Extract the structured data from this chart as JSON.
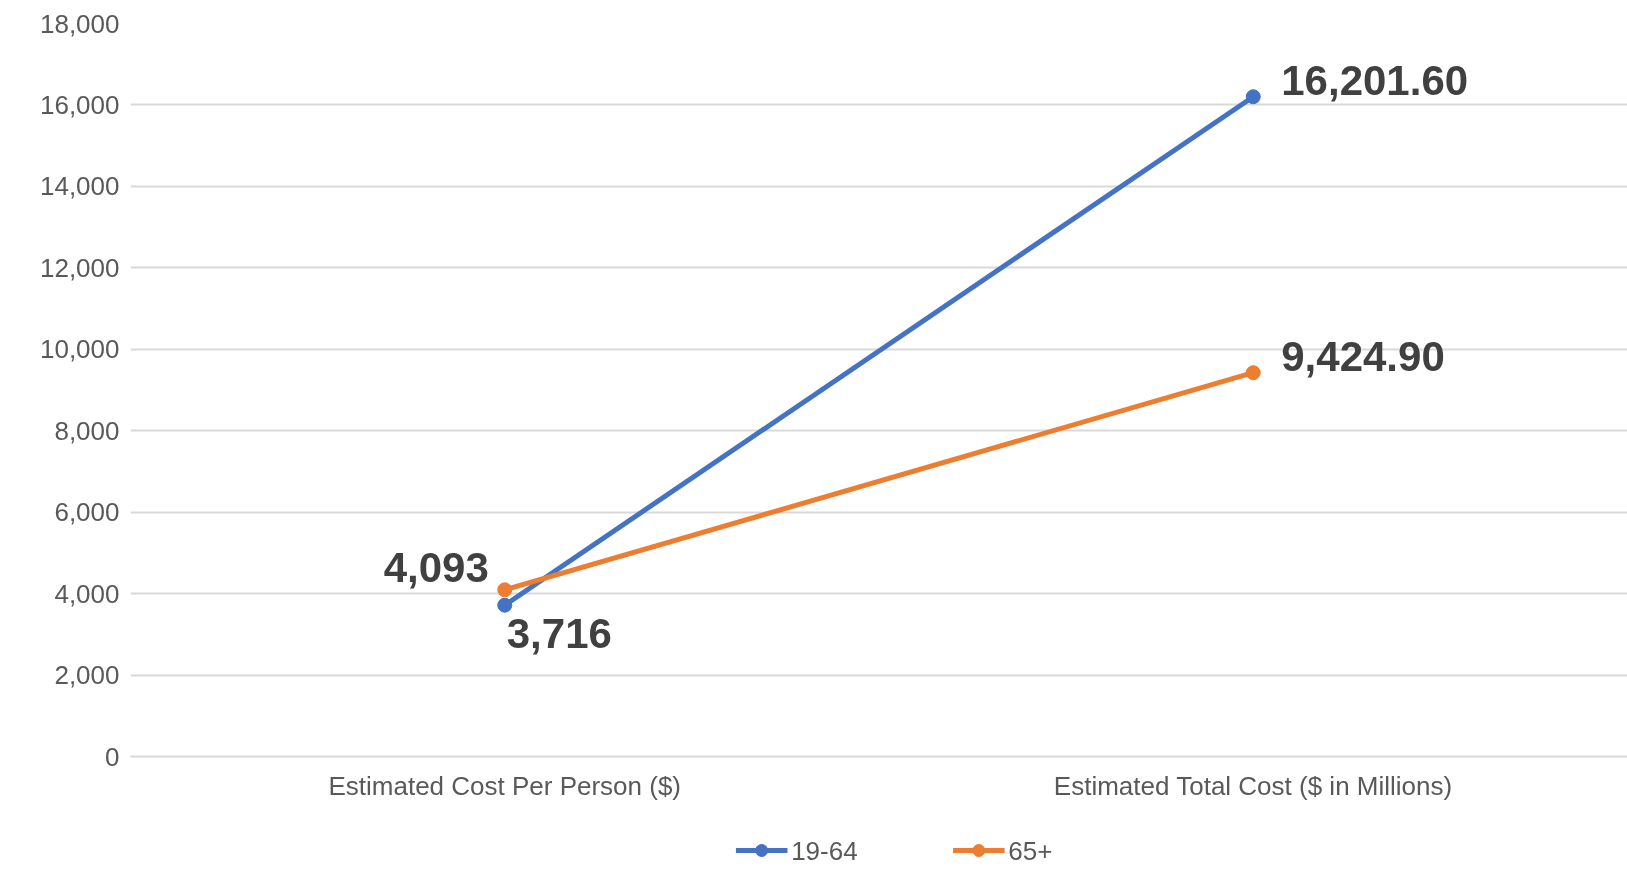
{
  "chart_data": {
    "type": "line",
    "categories": [
      "Estimated Cost Per Person ($)",
      "Estimated Total Cost ($ in Millions)"
    ],
    "series": [
      {
        "name": "19-64",
        "color": "#4472c4",
        "values": [
          3716,
          16201.6
        ],
        "value_labels": [
          "3,716",
          "16,201.60"
        ]
      },
      {
        "name": "65+",
        "color": "#ed7d31",
        "values": [
          4093,
          9424.9
        ],
        "value_labels": [
          "4,093",
          "9,424.90"
        ]
      }
    ],
    "ylim": [
      0,
      18000
    ],
    "yticks": [
      {
        "value": 0,
        "label": "0"
      },
      {
        "value": 2000,
        "label": "2,000"
      },
      {
        "value": 4000,
        "label": "4,000"
      },
      {
        "value": 6000,
        "label": "6,000"
      },
      {
        "value": 8000,
        "label": "8,000"
      },
      {
        "value": 10000,
        "label": "10,000"
      },
      {
        "value": 12000,
        "label": "12,000"
      },
      {
        "value": 14000,
        "label": "14,000"
      },
      {
        "value": 16000,
        "label": "16,000"
      },
      {
        "value": 18000,
        "label": "18,000"
      }
    ],
    "grid": "y",
    "legend": "bottom",
    "marker": "circle",
    "line_style": "solid"
  }
}
